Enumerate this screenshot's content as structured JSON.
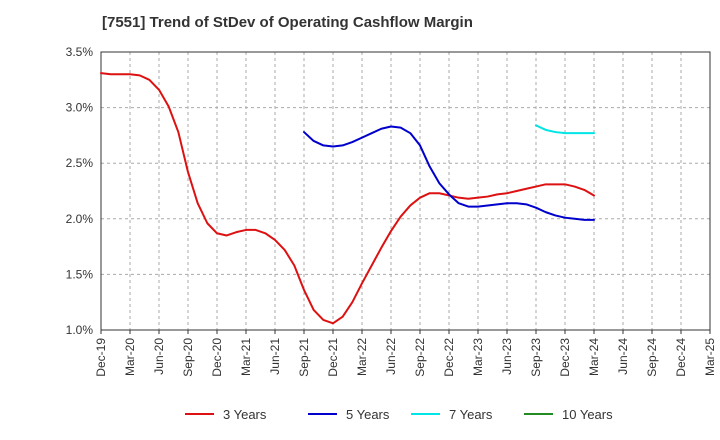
{
  "chart_data": {
    "type": "line",
    "title": "[7551]  Trend of StDev of Operating Cashflow Margin",
    "xlabel": "",
    "ylabel": "",
    "x": [
      "Dec-19",
      "Mar-20",
      "Jun-20",
      "Sep-20",
      "Dec-20",
      "Mar-21",
      "Jun-21",
      "Sep-21",
      "Dec-21",
      "Mar-22",
      "Jun-22",
      "Sep-22",
      "Dec-22",
      "Mar-23",
      "Jun-23",
      "Sep-23",
      "Dec-23",
      "Mar-24",
      "Jun-24",
      "Sep-24",
      "Dec-24",
      "Mar-25"
    ],
    "y_ticks": [
      "1.0%",
      "1.5%",
      "2.0%",
      "2.5%",
      "3.0%",
      "3.5%"
    ],
    "ylim": [
      1.0,
      3.5
    ],
    "y_unit": "%",
    "grid": "horizontal-dashed",
    "legend_position": "bottom",
    "series": [
      {
        "name": "3 Years",
        "color": "#dd1111",
        "points": [
          [
            "Dec-19",
            3.31
          ],
          [
            "Jan-20",
            3.3
          ],
          [
            "Feb-20",
            3.3
          ],
          [
            "Mar-20",
            3.3
          ],
          [
            "Apr-20",
            3.29
          ],
          [
            "May-20",
            3.25
          ],
          [
            "Jun-20",
            3.16
          ],
          [
            "Jul-20",
            3.01
          ],
          [
            "Aug-20",
            2.78
          ],
          [
            "Sep-20",
            2.42
          ],
          [
            "Oct-20",
            2.14
          ],
          [
            "Nov-20",
            1.96
          ],
          [
            "Dec-20",
            1.87
          ],
          [
            "Jan-21",
            1.85
          ],
          [
            "Feb-21",
            1.88
          ],
          [
            "Mar-21",
            1.9
          ],
          [
            "Apr-21",
            1.9
          ],
          [
            "May-21",
            1.87
          ],
          [
            "Jun-21",
            1.81
          ],
          [
            "Jul-21",
            1.72
          ],
          [
            "Aug-21",
            1.58
          ],
          [
            "Sep-21",
            1.36
          ],
          [
            "Oct-21",
            1.18
          ],
          [
            "Nov-21",
            1.09
          ],
          [
            "Dec-21",
            1.06
          ],
          [
            "Jan-22",
            1.12
          ],
          [
            "Feb-22",
            1.25
          ],
          [
            "Mar-22",
            1.42
          ],
          [
            "Apr-22",
            1.58
          ],
          [
            "May-22",
            1.74
          ],
          [
            "Jun-22",
            1.89
          ],
          [
            "Jul-22",
            2.02
          ],
          [
            "Aug-22",
            2.12
          ],
          [
            "Sep-22",
            2.19
          ],
          [
            "Oct-22",
            2.23
          ],
          [
            "Nov-22",
            2.23
          ],
          [
            "Dec-22",
            2.21
          ],
          [
            "Jan-23",
            2.19
          ],
          [
            "Feb-23",
            2.18
          ],
          [
            "Mar-23",
            2.19
          ],
          [
            "Apr-23",
            2.2
          ],
          [
            "May-23",
            2.22
          ],
          [
            "Jun-23",
            2.23
          ],
          [
            "Jul-23",
            2.25
          ],
          [
            "Aug-23",
            2.27
          ],
          [
            "Sep-23",
            2.29
          ],
          [
            "Oct-23",
            2.31
          ],
          [
            "Nov-23",
            2.31
          ],
          [
            "Dec-23",
            2.31
          ],
          [
            "Jan-24",
            2.29
          ],
          [
            "Feb-24",
            2.26
          ],
          [
            "Mar-24",
            2.21
          ]
        ]
      },
      {
        "name": "5 Years",
        "color": "#0000cc",
        "points": [
          [
            "Sep-21",
            2.78
          ],
          [
            "Oct-21",
            2.7
          ],
          [
            "Nov-21",
            2.66
          ],
          [
            "Dec-21",
            2.65
          ],
          [
            "Jan-22",
            2.66
          ],
          [
            "Feb-22",
            2.69
          ],
          [
            "Mar-22",
            2.73
          ],
          [
            "Apr-22",
            2.77
          ],
          [
            "May-22",
            2.81
          ],
          [
            "Jun-22",
            2.83
          ],
          [
            "Jul-22",
            2.82
          ],
          [
            "Aug-22",
            2.77
          ],
          [
            "Sep-22",
            2.66
          ],
          [
            "Oct-22",
            2.47
          ],
          [
            "Nov-22",
            2.32
          ],
          [
            "Dec-22",
            2.22
          ],
          [
            "Jan-23",
            2.14
          ],
          [
            "Feb-23",
            2.11
          ],
          [
            "Mar-23",
            2.11
          ],
          [
            "Apr-23",
            2.12
          ],
          [
            "May-23",
            2.13
          ],
          [
            "Jun-23",
            2.14
          ],
          [
            "Jul-23",
            2.14
          ],
          [
            "Aug-23",
            2.13
          ],
          [
            "Sep-23",
            2.1
          ],
          [
            "Oct-23",
            2.06
          ],
          [
            "Nov-23",
            2.03
          ],
          [
            "Dec-23",
            2.01
          ],
          [
            "Jan-24",
            2.0
          ],
          [
            "Feb-24",
            1.99
          ],
          [
            "Mar-24",
            1.99
          ]
        ]
      },
      {
        "name": "7 Years",
        "color": "#00e5e5",
        "points": [
          [
            "Sep-23",
            2.84
          ],
          [
            "Oct-23",
            2.8
          ],
          [
            "Nov-23",
            2.78
          ],
          [
            "Dec-23",
            2.77
          ],
          [
            "Jan-24",
            2.77
          ],
          [
            "Feb-24",
            2.77
          ],
          [
            "Mar-24",
            2.77
          ]
        ]
      },
      {
        "name": "10 Years",
        "color": "#228b22",
        "points": []
      }
    ]
  }
}
